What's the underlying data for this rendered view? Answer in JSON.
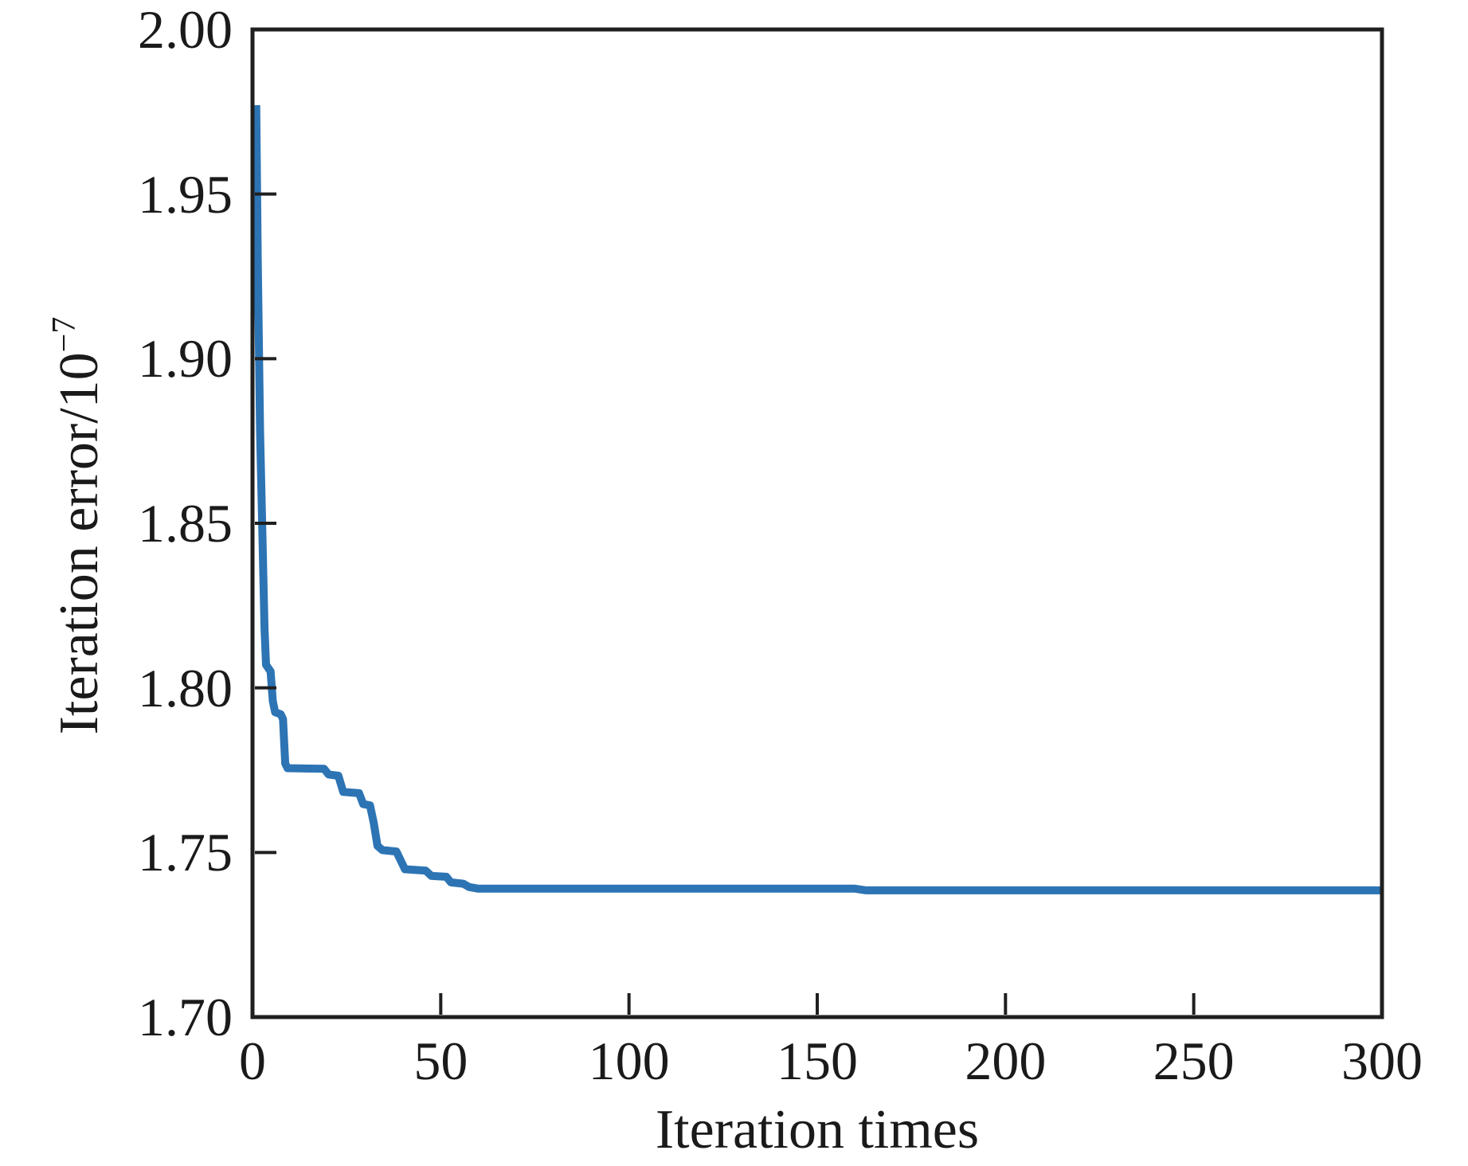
{
  "figure": {
    "xlabel": "Iteration times",
    "ylabel_base": "Iteration error/10",
    "ylabel_superscript": "−7"
  },
  "chart_data": {
    "type": "line",
    "title": "",
    "xlabel": "Iteration times",
    "ylabel": "Iteration error/10^-7",
    "xlim": [
      0,
      300
    ],
    "ylim": [
      1.7,
      2.0
    ],
    "xticks": [
      0,
      50,
      100,
      150,
      200,
      250,
      300
    ],
    "xtick_labels": [
      "0",
      "50",
      "100",
      "150",
      "200",
      "250",
      "300"
    ],
    "yticks": [
      1.7,
      1.75,
      1.8,
      1.85,
      1.9,
      1.95,
      2.0
    ],
    "ytick_labels": [
      "1.70",
      "1.75",
      "1.80",
      "1.85",
      "1.90",
      "1.95",
      "2.00"
    ],
    "grid": false,
    "legend": null,
    "line_color": "#2d74b4",
    "axis_color": "#1f1f1f",
    "line_width": 10,
    "series": [
      {
        "name": "iteration_error",
        "points": [
          [
            1,
            1.977
          ],
          [
            1.4,
            1.93
          ],
          [
            2,
            1.878
          ],
          [
            2.6,
            1.848
          ],
          [
            3.2,
            1.818
          ],
          [
            3.6,
            1.807
          ],
          [
            4.8,
            1.805
          ],
          [
            5.4,
            1.796
          ],
          [
            6,
            1.7926
          ],
          [
            7.5,
            1.792
          ],
          [
            8.1,
            1.7905
          ],
          [
            8.7,
            1.777
          ],
          [
            9.3,
            1.7756
          ],
          [
            19,
            1.7754
          ],
          [
            20.2,
            1.7737
          ],
          [
            22.8,
            1.7733
          ],
          [
            24.1,
            1.7684
          ],
          [
            28.3,
            1.768
          ],
          [
            29.4,
            1.7647
          ],
          [
            31.2,
            1.7643
          ],
          [
            32.2,
            1.759
          ],
          [
            33.2,
            1.752
          ],
          [
            34.5,
            1.7507
          ],
          [
            38.2,
            1.7503
          ],
          [
            40.5,
            1.7449
          ],
          [
            46,
            1.7445
          ],
          [
            47.5,
            1.7429
          ],
          [
            51.5,
            1.7426
          ],
          [
            52.7,
            1.7409
          ],
          [
            56,
            1.7405
          ],
          [
            57.5,
            1.7395
          ],
          [
            60,
            1.739
          ],
          [
            160,
            1.739
          ],
          [
            163,
            1.7385
          ],
          [
            300,
            1.7385
          ]
        ]
      }
    ]
  }
}
